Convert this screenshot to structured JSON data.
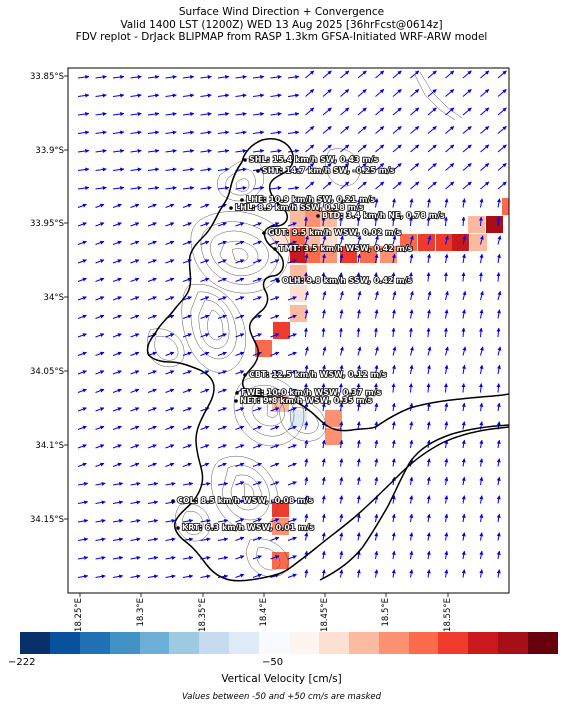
{
  "title": {
    "line1": "Surface Wind Direction + Convergence",
    "line2": "Valid 1400 LST (1200Z) WED 13 Aug 2025 [36hrFcst@0614z]",
    "line3": "FDV replot - DrJack BLIPMAP from RASP 1.3km GFSA-Initiated WRF-ARW model"
  },
  "axes": {
    "lat_ticks": [
      "33.85°S",
      "33.9°S",
      "33.95°S",
      "34°S",
      "34.05°S",
      "34.1°S",
      "34.15°S"
    ],
    "lon_ticks": [
      "18.25°E",
      "18.3°E",
      "18.35°E",
      "18.4°E",
      "18.45°E",
      "18.5°E",
      "18.55°E"
    ]
  },
  "stations": [
    {
      "code": "SHL",
      "text": "SHL: 15.4 km/h SW, 0.43 m/s"
    },
    {
      "code": "SHT",
      "text": "SHT: 14.7 km/h SW, -0.25 m/s"
    },
    {
      "code": "LHE",
      "text": "LHE: 10.9 km/h SW, 0.21 m/s"
    },
    {
      "code": "LHL",
      "text": "LHL: 8.9 km/h SSW, 0.18 m/s"
    },
    {
      "code": "BTD",
      "text": "BTD: 3.4 km/h NE, 0.78 m/s"
    },
    {
      "code": "GUT",
      "text": "GUT: 9.5 km/h WSW, 0.02 m/s"
    },
    {
      "code": "TMT",
      "text": "TMT: 3.5 km/h WSW, 0.42 m/s"
    },
    {
      "code": "OLH",
      "text": "OLH: 9.8 km/h SSW, 0.42 m/s"
    },
    {
      "code": "CBT",
      "text": "CBT: 12.5 km/h WSW, 0.12 m/s"
    },
    {
      "code": "FWE",
      "text": "FWE: 10.0 km/h WSW, 0.37 m/s"
    },
    {
      "code": "NET",
      "text": "NET: 9.8 km/h WSW, 0.35 m/s"
    },
    {
      "code": "COL",
      "text": "COL: 8.5 km/h WSW, -0.08 m/s"
    },
    {
      "code": "KRT",
      "text": "KRT: 6.3 km/h WSW, 0.01 m/s"
    }
  ],
  "colorbar": {
    "min_label": "−222",
    "mid_label": "−50",
    "label": "Vertical Velocity [cm/s]",
    "note": "Values between -50 and +50 cm/s are masked",
    "colors": [
      "#08306b",
      "#08519c",
      "#2171b5",
      "#4292c6",
      "#6baed6",
      "#9ecae1",
      "#c6dbef",
      "#deebf7",
      "#f7fbff",
      "#fff5f0",
      "#fee0d2",
      "#fcbba1",
      "#fc9272",
      "#fb6a4a",
      "#ef3b2c",
      "#cb181d",
      "#a50f15",
      "#67000d"
    ]
  },
  "colors": {
    "arrow": "#0000ee",
    "coast": "#000000",
    "contour": "#555555"
  }
}
